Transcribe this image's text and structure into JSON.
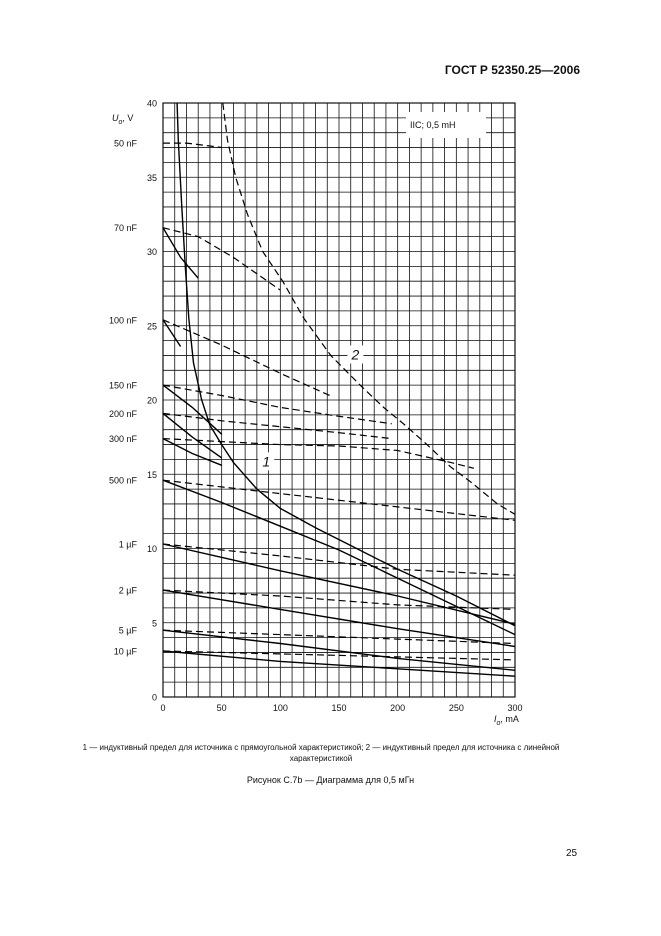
{
  "page": {
    "header": "ГОСТ Р 52350.25—2006",
    "legend_text": "1 — индуктивный предел для источника с прямоугольной характеристикой; 2 — индуктивный предел для источника с линейной характеристикой",
    "caption": "Рисунок С.7b — Диаграмма для 0,5 мГн",
    "page_number": "25"
  },
  "chart_data": {
    "type": "line",
    "annotation": "IIC; 0,5 mH",
    "ylabel_main": "U",
    "ylabel_sub": "o",
    "ylabel_unit": ", V",
    "xlabel_main": "I",
    "xlabel_sub": "o",
    "xlabel_unit": ", mA",
    "xlim": [
      0,
      300
    ],
    "ylim": [
      0,
      40
    ],
    "xticks": [
      "0",
      "50",
      "100",
      "150",
      "200",
      "250",
      "300"
    ],
    "yticks": [
      "0",
      "5",
      "10",
      "15",
      "20",
      "25",
      "30",
      "35",
      "40"
    ],
    "grid": true,
    "capacitances": [
      {
        "label": "50 nF",
        "u": 37.3
      },
      {
        "label": "70 nF",
        "u": 31.6
      },
      {
        "label": "100 nF",
        "u": 25.4
      },
      {
        "label": "150 nF",
        "u": 21.0
      },
      {
        "label": "200 nF",
        "u": 19.1
      },
      {
        "label": "300 nF",
        "u": 17.4
      },
      {
        "label": "500 nF",
        "u": 14.6
      },
      {
        "label": "1 µF",
        "u": 10.3
      },
      {
        "label": "2 µF",
        "u": 7.2
      },
      {
        "label": "5 µF",
        "u": 4.5
      },
      {
        "label": "10 µF",
        "u": 3.1
      }
    ],
    "series": [
      {
        "name": "1",
        "style": "solid",
        "points": [
          [
            12,
            40
          ],
          [
            13,
            37.5
          ],
          [
            16,
            33
          ],
          [
            19,
            29
          ],
          [
            22,
            25.5
          ],
          [
            26,
            22.5
          ],
          [
            33,
            20
          ],
          [
            40,
            18.3
          ],
          [
            50,
            17
          ],
          [
            60,
            15.8
          ],
          [
            80,
            14
          ],
          [
            100,
            12.7
          ],
          [
            130,
            11.4
          ],
          [
            160,
            10.2
          ],
          [
            200,
            8.6
          ],
          [
            250,
            6.8
          ],
          [
            300,
            4.8
          ]
        ]
      },
      {
        "name": "2",
        "style": "dashed",
        "points": [
          [
            51,
            40
          ],
          [
            55,
            37.5
          ],
          [
            62,
            35
          ],
          [
            72,
            32.5
          ],
          [
            85,
            30
          ],
          [
            102,
            28
          ],
          [
            120,
            25.5
          ],
          [
            143,
            23
          ],
          [
            168,
            21
          ],
          [
            188,
            19.5
          ],
          [
            205,
            18.4
          ],
          [
            225,
            17
          ],
          [
            245,
            15.5
          ],
          [
            262,
            14.5
          ],
          [
            285,
            13
          ],
          [
            300,
            12.3
          ]
        ]
      },
      {
        "name": "50 nF",
        "style": "dashed",
        "points": [
          [
            0,
            37.3
          ],
          [
            20,
            37.3
          ],
          [
            50,
            37
          ]
        ]
      },
      {
        "name": "70 nF",
        "style": "dashed",
        "points": [
          [
            0,
            31.6
          ],
          [
            30,
            31
          ],
          [
            60,
            29.6
          ],
          [
            100,
            27.4
          ]
        ]
      },
      {
        "name": "70 nF",
        "style": "solid",
        "points": [
          [
            0,
            31.6
          ],
          [
            15,
            29.6
          ],
          [
            30,
            28.2
          ]
        ]
      },
      {
        "name": "100 nF",
        "style": "dashed",
        "points": [
          [
            0,
            25.4
          ],
          [
            50,
            23.7
          ],
          [
            100,
            21.8
          ],
          [
            145,
            20.2
          ]
        ]
      },
      {
        "name": "100 nF",
        "style": "solid",
        "points": [
          [
            0,
            25.4
          ],
          [
            15,
            23.6
          ]
        ]
      },
      {
        "name": "150 nF",
        "style": "dashed",
        "points": [
          [
            0,
            21.0
          ],
          [
            50,
            20.3
          ],
          [
            100,
            19.5
          ],
          [
            150,
            18.9
          ],
          [
            195,
            18.4
          ]
        ]
      },
      {
        "name": "150 nF",
        "style": "solid",
        "points": [
          [
            0,
            21.0
          ],
          [
            25,
            19.5
          ],
          [
            50,
            17.7
          ]
        ]
      },
      {
        "name": "200 nF",
        "style": "dashed",
        "points": [
          [
            0,
            19.1
          ],
          [
            50,
            18.6
          ],
          [
            100,
            18.2
          ],
          [
            150,
            17.8
          ],
          [
            195,
            17.4
          ]
        ]
      },
      {
        "name": "200 nF",
        "style": "solid",
        "points": [
          [
            0,
            19.1
          ],
          [
            25,
            17.5
          ],
          [
            50,
            16.1
          ]
        ]
      },
      {
        "name": "300 nF",
        "style": "dashed",
        "points": [
          [
            0,
            17.4
          ],
          [
            50,
            17.2
          ],
          [
            100,
            17.0
          ],
          [
            150,
            16.9
          ],
          [
            200,
            16.6
          ],
          [
            245,
            15.8
          ],
          [
            265,
            15.4
          ]
        ]
      },
      {
        "name": "300 nF",
        "style": "solid",
        "points": [
          [
            0,
            17.4
          ],
          [
            25,
            16.4
          ],
          [
            50,
            15.6
          ]
        ]
      },
      {
        "name": "500 nF",
        "style": "dashed",
        "points": [
          [
            0,
            14.6
          ],
          [
            100,
            13.7
          ],
          [
            200,
            12.8
          ],
          [
            300,
            11.9
          ]
        ]
      },
      {
        "name": "500 nF",
        "style": "solid",
        "points": [
          [
            0,
            14.6
          ],
          [
            50,
            13.1
          ],
          [
            100,
            11.5
          ],
          [
            150,
            9.9
          ],
          [
            200,
            8.0
          ],
          [
            250,
            6.1
          ],
          [
            300,
            4.2
          ]
        ]
      },
      {
        "name": "1 µF",
        "style": "dashed",
        "points": [
          [
            0,
            10.3
          ],
          [
            100,
            9.5
          ],
          [
            200,
            8.6
          ],
          [
            300,
            8.2
          ]
        ]
      },
      {
        "name": "1 µF",
        "style": "solid",
        "points": [
          [
            0,
            10.3
          ],
          [
            100,
            8.5
          ],
          [
            200,
            6.8
          ],
          [
            300,
            4.9
          ]
        ]
      },
      {
        "name": "2 µF",
        "style": "dashed",
        "points": [
          [
            0,
            7.2
          ],
          [
            100,
            6.8
          ],
          [
            200,
            6.2
          ],
          [
            300,
            5.9
          ]
        ]
      },
      {
        "name": "2 µF",
        "style": "solid",
        "points": [
          [
            0,
            7.2
          ],
          [
            100,
            5.9
          ],
          [
            200,
            4.6
          ],
          [
            300,
            3.4
          ]
        ]
      },
      {
        "name": "5 µF",
        "style": "dashed",
        "points": [
          [
            0,
            4.5
          ],
          [
            100,
            4.2
          ],
          [
            200,
            3.9
          ],
          [
            300,
            3.6
          ]
        ]
      },
      {
        "name": "5 µF",
        "style": "solid",
        "points": [
          [
            0,
            4.5
          ],
          [
            100,
            3.6
          ],
          [
            200,
            2.6
          ],
          [
            300,
            1.8
          ]
        ]
      },
      {
        "name": "10 µF",
        "style": "dashed",
        "points": [
          [
            0,
            3.1
          ],
          [
            100,
            2.9
          ],
          [
            200,
            2.7
          ],
          [
            300,
            2.5
          ]
        ]
      },
      {
        "name": "10 µF",
        "style": "solid",
        "points": [
          [
            0,
            3.1
          ],
          [
            100,
            2.4
          ],
          [
            200,
            1.9
          ],
          [
            300,
            1.4
          ]
        ]
      }
    ],
    "curve_labels": [
      {
        "text": "1",
        "x": 88,
        "y": 15.8
      },
      {
        "text": "2",
        "x": 164,
        "y": 23.0
      }
    ]
  }
}
